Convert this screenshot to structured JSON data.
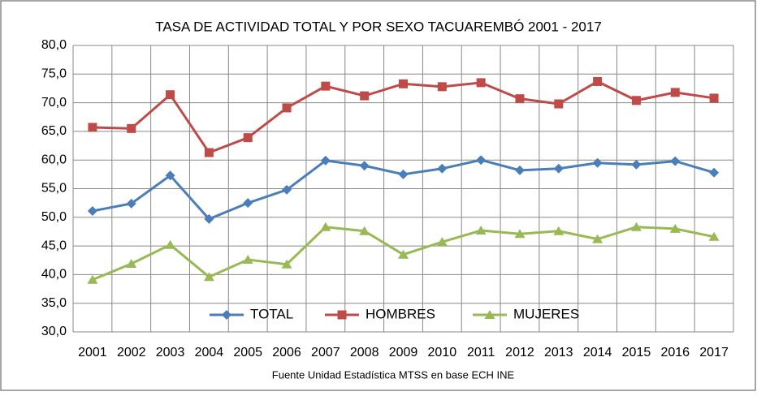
{
  "chart_data": {
    "type": "line",
    "title": "TASA DE ACTIVIDAD TOTAL Y POR SEXO TACUAREMBÓ 2001 - 2017",
    "source": "Fuente Unidad Estadística MTSS en base ECH INE",
    "categories": [
      "2001",
      "2002",
      "2003",
      "2004",
      "2005",
      "2006",
      "2007",
      "2008",
      "2009",
      "2010",
      "2011",
      "2012",
      "2013",
      "2014",
      "2015",
      "2016",
      "2017"
    ],
    "series": [
      {
        "name": "TOTAL",
        "color": "#4a7ebb",
        "marker": "diamond",
        "values": [
          51.1,
          52.4,
          57.3,
          49.7,
          52.5,
          54.8,
          59.9,
          59.0,
          57.5,
          58.5,
          60.0,
          58.2,
          58.5,
          59.5,
          59.2,
          59.8,
          57.8
        ]
      },
      {
        "name": "HOMBRES",
        "color": "#be4b48",
        "marker": "square",
        "values": [
          65.7,
          65.5,
          71.4,
          61.3,
          63.9,
          69.1,
          72.9,
          71.2,
          73.3,
          72.8,
          73.5,
          70.7,
          69.8,
          73.7,
          70.4,
          71.8,
          70.8
        ]
      },
      {
        "name": "MUJERES",
        "color": "#98b954",
        "marker": "triangle",
        "values": [
          39.1,
          41.9,
          45.2,
          39.6,
          42.6,
          41.8,
          48.3,
          47.6,
          43.5,
          45.7,
          47.7,
          47.1,
          47.6,
          46.2,
          48.3,
          48.0,
          46.6
        ]
      }
    ],
    "ylim": [
      30,
      80
    ],
    "yticks": [
      {
        "value": 30,
        "label": "30,0"
      },
      {
        "value": 35,
        "label": "35,0"
      },
      {
        "value": 40,
        "label": "40,0"
      },
      {
        "value": 45,
        "label": "45,0"
      },
      {
        "value": 50,
        "label": "50,0"
      },
      {
        "value": 55,
        "label": "55,0"
      },
      {
        "value": 60,
        "label": "60,0"
      },
      {
        "value": 65,
        "label": "65,0"
      },
      {
        "value": 70,
        "label": "70,0"
      },
      {
        "value": 75,
        "label": "75,0"
      },
      {
        "value": 80,
        "label": "80,0"
      }
    ],
    "grid": true,
    "legend": "bottom"
  }
}
